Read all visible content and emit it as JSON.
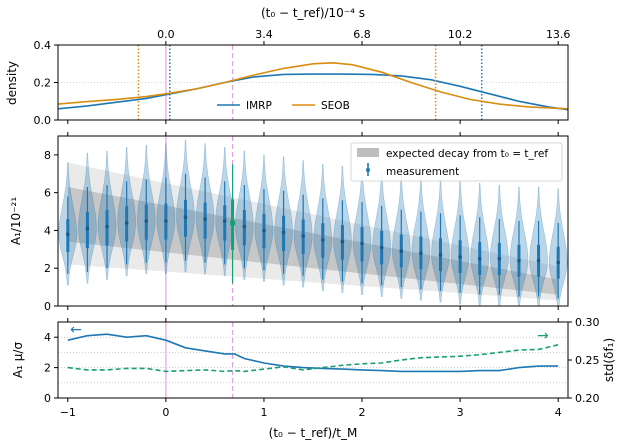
{
  "colors": {
    "imrp": "#1f77b4",
    "seob": "#d98c0e",
    "std": "#1a9e77",
    "highlight": "#e6b3e6",
    "dashed_marker": "#e0a3e0",
    "band": "#9e9e9e",
    "grid": "#b0b0b0"
  },
  "chart_data": [
    {
      "type": "line",
      "name": "density panel",
      "ylabel": "density",
      "top_axis_label": "(t₀ − t_ref)/10⁻⁴ s",
      "top_ticks": [
        "0.0",
        "3.4",
        "6.8",
        "10.2",
        "13.6"
      ],
      "top_tick_positions_x": [
        0.0,
        1.0,
        2.0,
        3.0,
        4.0
      ],
      "xlim": [
        -1.1,
        4.1
      ],
      "ylim": [
        0,
        0.4
      ],
      "yticks": [
        "0.0",
        "0.2",
        "0.4"
      ],
      "ytick_values": [
        0.0,
        0.2,
        0.4
      ],
      "legend_position": "lower-center",
      "series": [
        {
          "name": "IMRP",
          "x": [
            -1.1,
            -0.8,
            -0.5,
            -0.2,
            0.0,
            0.3,
            0.6,
            0.9,
            1.2,
            1.5,
            1.8,
            2.1,
            2.4,
            2.7,
            3.0,
            3.3,
            3.6,
            3.9,
            4.1
          ],
          "y": [
            0.06,
            0.075,
            0.095,
            0.115,
            0.135,
            0.165,
            0.2,
            0.23,
            0.243,
            0.245,
            0.245,
            0.243,
            0.235,
            0.215,
            0.18,
            0.14,
            0.1,
            0.07,
            0.055
          ],
          "interval_lines_x": [
            0.04,
            3.22
          ]
        },
        {
          "name": "SEOB",
          "x": [
            -1.1,
            -0.8,
            -0.5,
            -0.2,
            0.0,
            0.3,
            0.6,
            0.9,
            1.2,
            1.5,
            1.7,
            1.9,
            2.2,
            2.5,
            2.8,
            3.1,
            3.4,
            3.7,
            4.1
          ],
          "y": [
            0.085,
            0.098,
            0.11,
            0.125,
            0.14,
            0.165,
            0.2,
            0.24,
            0.275,
            0.3,
            0.305,
            0.295,
            0.255,
            0.2,
            0.15,
            0.11,
            0.085,
            0.07,
            0.06
          ],
          "interval_lines_x": [
            -0.28,
            2.75
          ]
        }
      ]
    },
    {
      "type": "violin",
      "name": "amplitude panel",
      "ylabel": "A₁/10⁻²¹",
      "xlim": [
        -1.1,
        4.1
      ],
      "ylim": [
        0,
        9
      ],
      "yticks": [
        "0",
        "2",
        "4",
        "6",
        "8"
      ],
      "ytick_values": [
        0,
        2,
        4,
        6,
        8
      ],
      "legend_position": "top-right",
      "legend": [
        {
          "label": "expected decay from t₀ = t_ref",
          "kind": "band"
        },
        {
          "label": "measurement",
          "kind": "errorbar"
        }
      ],
      "x": [
        -1.0,
        -0.8,
        -0.6,
        -0.4,
        -0.2,
        0.0,
        0.2,
        0.4,
        0.6,
        0.68,
        0.8,
        1.0,
        1.2,
        1.4,
        1.6,
        1.8,
        2.0,
        2.2,
        2.4,
        2.6,
        2.8,
        3.0,
        3.2,
        3.4,
        3.6,
        3.8,
        4.0
      ],
      "median": [
        3.8,
        4.1,
        4.2,
        4.4,
        4.5,
        4.5,
        4.7,
        4.6,
        4.5,
        4.4,
        4.2,
        4.0,
        3.9,
        3.7,
        3.5,
        3.4,
        3.3,
        3.1,
        2.9,
        2.8,
        2.7,
        2.6,
        2.5,
        2.5,
        2.4,
        2.4,
        2.3
      ],
      "lower_90": [
        1.7,
        1.8,
        2.0,
        2.2,
        2.3,
        2.3,
        2.4,
        2.3,
        2.2,
        1.2,
        2.0,
        1.9,
        1.7,
        1.6,
        1.4,
        1.3,
        1.2,
        1.1,
        1.0,
        0.9,
        0.8,
        0.7,
        0.6,
        0.6,
        0.5,
        0.5,
        0.4
      ],
      "upper_90": [
        5.8,
        6.3,
        6.4,
        6.6,
        6.7,
        6.8,
        7.0,
        6.8,
        6.6,
        7.5,
        6.4,
        6.2,
        6.1,
        5.9,
        5.7,
        5.6,
        5.5,
        5.3,
        5.1,
        5.0,
        4.9,
        4.8,
        4.7,
        4.6,
        4.5,
        4.5,
        4.4
      ],
      "band_inner": {
        "x": [
          -1.0,
          4.0
        ],
        "lower": [
          3.4,
          0.6
        ],
        "upper": [
          6.3,
          1.4
        ]
      },
      "band_outer": {
        "x": [
          -1.0,
          4.0
        ],
        "lower": [
          2.2,
          0.3
        ],
        "upper": [
          7.6,
          2.1
        ]
      }
    },
    {
      "type": "line",
      "name": "ratio panel",
      "xlabel": "(t₀ − t_ref)/t_M",
      "ylabel": "A₁ μ/σ",
      "ylabel_right": "std(δf₁)",
      "xlim": [
        -1.1,
        4.1
      ],
      "xticks": [
        "−1",
        "0",
        "1",
        "2",
        "3",
        "4"
      ],
      "xtick_values": [
        -1,
        0,
        1,
        2,
        3,
        4
      ],
      "ylim": [
        0,
        5
      ],
      "yticks": [
        "0",
        "2",
        "4"
      ],
      "ytick_values": [
        0,
        2,
        4
      ],
      "ylim_right": [
        0.2,
        0.3
      ],
      "yticks_right": [
        "0.20",
        "0.25",
        "0.30"
      ],
      "ytick_values_right": [
        0.2,
        0.25,
        0.3
      ],
      "arrow_left": "←",
      "arrow_right": "→",
      "series": [
        {
          "name": "A₁ μ/σ",
          "axis": "left",
          "x": [
            -1.0,
            -0.8,
            -0.6,
            -0.4,
            -0.2,
            0.0,
            0.2,
            0.4,
            0.6,
            0.7,
            0.8,
            1.0,
            1.2,
            1.4,
            1.6,
            1.8,
            2.0,
            2.2,
            2.4,
            2.6,
            2.8,
            3.0,
            3.2,
            3.4,
            3.6,
            3.8,
            4.0
          ],
          "y": [
            3.8,
            4.1,
            4.2,
            4.0,
            4.1,
            3.8,
            3.3,
            3.1,
            2.9,
            2.9,
            2.6,
            2.3,
            2.1,
            2.0,
            1.95,
            1.9,
            1.85,
            1.8,
            1.75,
            1.75,
            1.75,
            1.75,
            1.8,
            1.8,
            2.0,
            2.1,
            2.1
          ]
        },
        {
          "name": "std(δf₁)",
          "axis": "right",
          "x": [
            -1.0,
            -0.8,
            -0.6,
            -0.4,
            -0.2,
            0.0,
            0.2,
            0.4,
            0.6,
            0.7,
            0.8,
            1.0,
            1.2,
            1.4,
            1.6,
            1.8,
            2.0,
            2.2,
            2.4,
            2.6,
            2.8,
            3.0,
            3.2,
            3.4,
            3.6,
            3.8,
            4.0
          ],
          "y": [
            0.24,
            0.237,
            0.237,
            0.239,
            0.239,
            0.235,
            0.236,
            0.237,
            0.235,
            0.236,
            0.235,
            0.238,
            0.241,
            0.237,
            0.24,
            0.243,
            0.245,
            0.246,
            0.25,
            0.253,
            0.254,
            0.255,
            0.257,
            0.26,
            0.263,
            0.264,
            0.27
          ]
        }
      ]
    }
  ]
}
